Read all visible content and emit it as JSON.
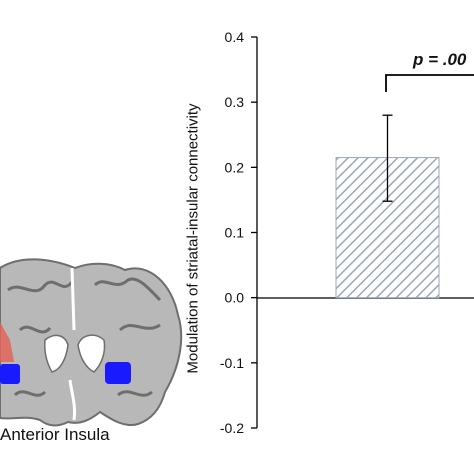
{
  "figure": {
    "brain_label": "Anterior Insula",
    "brain_colors": {
      "insula_roi": "#1a1aff",
      "striatum_roi": "#e0645a",
      "tissue_light": "#bdbdbd",
      "tissue_dark": "#7a7a7a"
    }
  },
  "chart_data": {
    "type": "bar",
    "title": "",
    "xlabel": "",
    "ylabel": "Modulation of striatal-insular connectivity",
    "ylim": [
      -0.2,
      0.4
    ],
    "yticks": [
      "0.4",
      "0.3",
      "0.2",
      "0.1",
      "0.0",
      "-0.1",
      "-0.2"
    ],
    "categories": [
      ""
    ],
    "values": [
      0.215
    ],
    "error_upper": [
      0.28
    ],
    "error_lower": [
      0.148
    ],
    "bar_fill": "hatched",
    "bar_color": "#9aa7b8",
    "annotation": "p = .00",
    "grid": false
  }
}
